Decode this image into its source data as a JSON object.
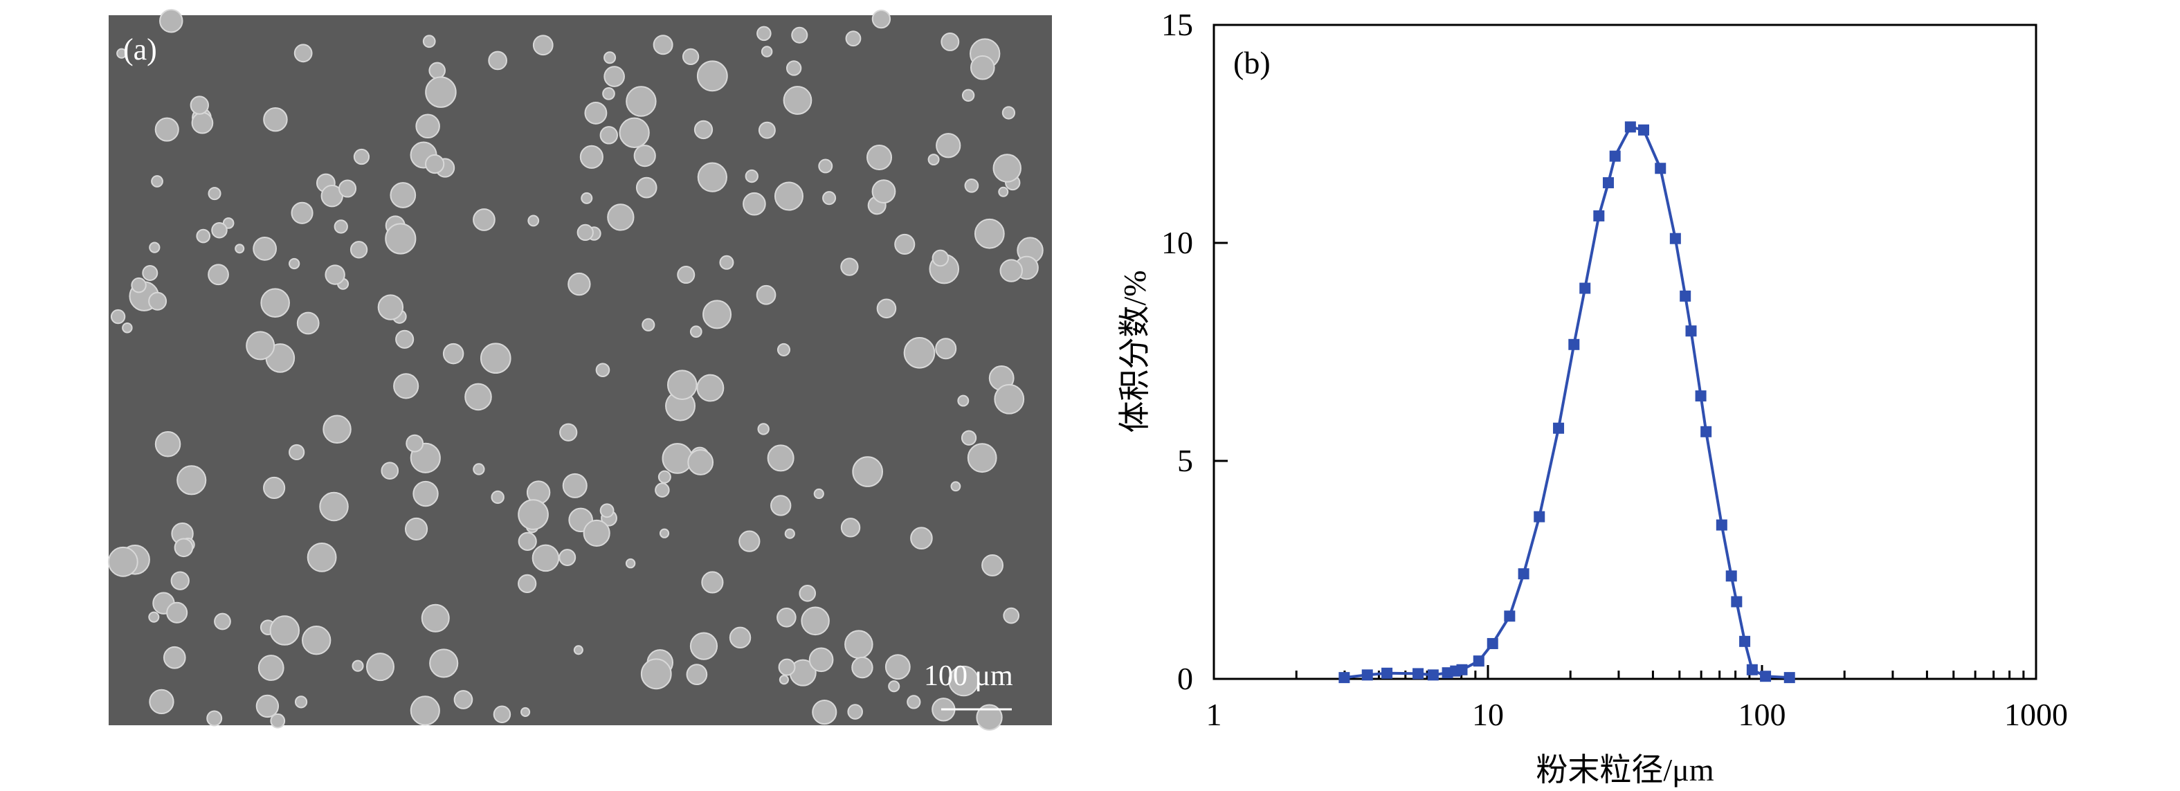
{
  "panel_a": {
    "label": "(a)",
    "scale_bar": "100 μm",
    "background_color": "#5a5a5a"
  },
  "chart_data": {
    "type": "line",
    "panel_label": "(b)",
    "xlabel": "粉末粒径/μm",
    "ylabel": "体积分数/%",
    "xscale": "log",
    "xlim": [
      1,
      1000
    ],
    "ylim": [
      0,
      15
    ],
    "xticks": [
      "1",
      "10",
      "100",
      "1000"
    ],
    "yticks": [
      "0",
      "5",
      "10",
      "15"
    ],
    "grid": false,
    "marker": "square",
    "color": "#2f4fb0",
    "x": [
      2.99,
      3.63,
      4.28,
      5.56,
      6.31,
      7.12,
      7.62,
      8.04,
      9.26,
      10.4,
      12.0,
      13.5,
      15.4,
      18.1,
      20.6,
      22.6,
      25.4,
      27.5,
      29.1,
      33.1,
      37.0,
      42.6,
      48.3,
      52.5,
      55.1,
      59.8,
      62.5,
      71.3,
      77.3,
      80.8,
      86.5,
      92.1,
      103,
      126
    ],
    "y": [
      0.03,
      0.09,
      0.13,
      0.12,
      0.09,
      0.14,
      0.18,
      0.21,
      0.41,
      0.81,
      1.44,
      2.41,
      3.72,
      5.75,
      7.67,
      8.96,
      10.62,
      11.38,
      11.99,
      12.66,
      12.59,
      11.71,
      10.1,
      8.78,
      7.98,
      6.49,
      5.67,
      3.53,
      2.36,
      1.77,
      0.86,
      0.21,
      0.06,
      0.03
    ]
  }
}
